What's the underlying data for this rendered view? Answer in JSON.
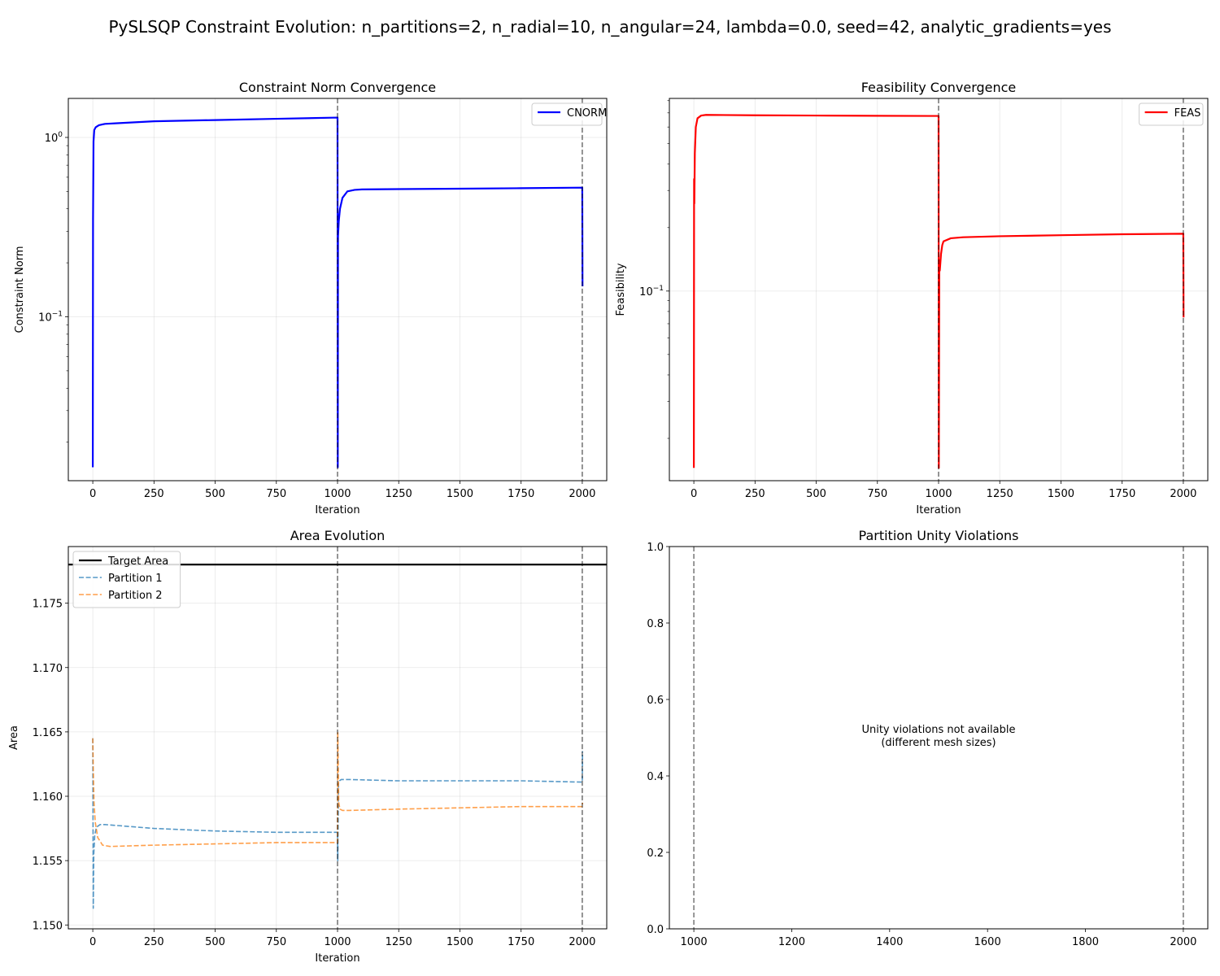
{
  "figure": {
    "title": "PySLSQP Constraint Evolution: n_partitions=2, n_radial=10, n_angular=24, lambda=0.0, seed=42, analytic_gradients=yes"
  },
  "chart_data": [
    {
      "id": "cnorm",
      "type": "line",
      "title": "Constraint Norm Convergence",
      "xlabel": "Iteration",
      "ylabel": "Constraint Norm",
      "xlim": [
        -100,
        2100
      ],
      "ylim": [
        0.0122,
        1.65
      ],
      "yscale": "log",
      "xticks": [
        0,
        250,
        500,
        750,
        1000,
        1250,
        1500,
        1750,
        2000
      ],
      "xtick_labels": [
        "0",
        "250",
        "500",
        "750",
        "1000",
        "1250",
        "1500",
        "1750",
        "2000"
      ],
      "yticks": [
        0.1,
        1
      ],
      "ytick_labels": [
        "10^-1",
        "10^0"
      ],
      "grid": true,
      "legend_position": "upper right",
      "vlines": [
        1000,
        2000
      ],
      "series": [
        {
          "name": "CNORM",
          "color": "#0000ff",
          "style": "solid",
          "x": [
            0,
            1,
            3,
            6,
            12,
            25,
            50,
            100,
            250,
            500,
            750,
            999,
            1000,
            1001,
            1002,
            1005,
            1010,
            1020,
            1040,
            1070,
            1100,
            1250,
            1500,
            1750,
            1999,
            2000,
            2001
          ],
          "y": [
            0.0145,
            0.35,
            0.95,
            1.1,
            1.14,
            1.17,
            1.19,
            1.2,
            1.23,
            1.25,
            1.27,
            1.29,
            1.29,
            0.0145,
            0.28,
            0.34,
            0.4,
            0.46,
            0.5,
            0.51,
            0.513,
            0.515,
            0.518,
            0.521,
            0.525,
            0.525,
            0.148
          ]
        }
      ]
    },
    {
      "id": "feas",
      "type": "line",
      "title": "Feasibility Convergence",
      "xlabel": "Iteration",
      "ylabel": "Feasibility",
      "xlim": [
        -100,
        2100
      ],
      "ylim": [
        0.0126,
        0.82
      ],
      "yscale": "log",
      "xticks": [
        0,
        250,
        500,
        750,
        1000,
        1250,
        1500,
        1750,
        2000
      ],
      "xtick_labels": [
        "0",
        "250",
        "500",
        "750",
        "1000",
        "1250",
        "1500",
        "1750",
        "2000"
      ],
      "yticks": [
        0.1
      ],
      "ytick_labels": [
        "10^-1"
      ],
      "grid": true,
      "legend_position": "upper right",
      "vlines": [
        1000,
        2000
      ],
      "series": [
        {
          "name": "FEAS",
          "color": "#ff0000",
          "style": "solid",
          "x": [
            0,
            1,
            2,
            4,
            8,
            15,
            30,
            50,
            250,
            500,
            750,
            999,
            1000,
            1001,
            1003,
            1005,
            1010,
            1015,
            1020,
            1050,
            1100,
            1250,
            1500,
            1750,
            1999,
            2000,
            2001
          ],
          "y": [
            0.0145,
            0.34,
            0.26,
            0.45,
            0.6,
            0.66,
            0.68,
            0.685,
            0.682,
            0.68,
            0.678,
            0.677,
            0.677,
            0.0145,
            0.14,
            0.125,
            0.15,
            0.165,
            0.172,
            0.178,
            0.18,
            0.182,
            0.184,
            0.186,
            0.187,
            0.187,
            0.075
          ]
        }
      ]
    },
    {
      "id": "area",
      "type": "line",
      "title": "Area Evolution",
      "xlabel": "Iteration",
      "ylabel": "Area",
      "xlim": [
        -100,
        2100
      ],
      "ylim": [
        1.1497,
        1.1794
      ],
      "yscale": "linear",
      "xticks": [
        0,
        250,
        500,
        750,
        1000,
        1250,
        1500,
        1750,
        2000
      ],
      "xtick_labels": [
        "0",
        "250",
        "500",
        "750",
        "1000",
        "1250",
        "1500",
        "1750",
        "2000"
      ],
      "yticks": [
        1.15,
        1.155,
        1.16,
        1.165,
        1.17,
        1.175
      ],
      "ytick_labels": [
        "1.150",
        "1.155",
        "1.160",
        "1.165",
        "1.170",
        "1.175"
      ],
      "grid": true,
      "legend_position": "upper left",
      "vlines": [
        1000,
        2000
      ],
      "series": [
        {
          "name": "Target Area",
          "color": "#000000",
          "style": "solid",
          "x": [
            -100,
            2100
          ],
          "y": [
            1.178,
            1.178
          ]
        },
        {
          "name": "Partition 1",
          "color": "#1f77b4",
          "style": "dashed",
          "x": [
            0,
            2,
            4,
            8,
            15,
            30,
            50,
            250,
            500,
            750,
            999,
            1000,
            1001,
            1004,
            1008,
            1015,
            1050,
            1250,
            1500,
            1750,
            1999,
            2000,
            2001
          ],
          "y": [
            1.1645,
            1.1513,
            1.1555,
            1.157,
            1.1576,
            1.1578,
            1.1578,
            1.1575,
            1.1573,
            1.1572,
            1.1572,
            1.1572,
            1.155,
            1.161,
            1.1612,
            1.1613,
            1.1613,
            1.1612,
            1.1612,
            1.1612,
            1.1611,
            1.1611,
            1.1635
          ]
        },
        {
          "name": "Partition 2",
          "color": "#ff7f0e",
          "style": "dashed",
          "x": [
            0,
            2,
            5,
            10,
            20,
            40,
            70,
            250,
            500,
            750,
            999,
            1000,
            1001,
            1005,
            1010,
            1020,
            1050,
            1250,
            1500,
            1750,
            1999,
            2000,
            2001
          ],
          "y": [
            1.1645,
            1.162,
            1.1595,
            1.158,
            1.1568,
            1.1562,
            1.1561,
            1.1562,
            1.1563,
            1.1564,
            1.1564,
            1.1564,
            1.165,
            1.1595,
            1.159,
            1.1589,
            1.1589,
            1.159,
            1.1591,
            1.1592,
            1.1592,
            1.1592,
            1.1595
          ]
        }
      ]
    },
    {
      "id": "unity",
      "type": "line",
      "title": "Partition Unity Violations",
      "xlabel": "",
      "ylabel": "",
      "xlim": [
        950,
        2050
      ],
      "ylim": [
        0,
        1
      ],
      "yscale": "linear",
      "xticks": [
        1000,
        1200,
        1400,
        1600,
        1800,
        2000
      ],
      "xtick_labels": [
        "1000",
        "1200",
        "1400",
        "1600",
        "1800",
        "2000"
      ],
      "yticks": [
        0,
        0.2,
        0.4,
        0.6,
        0.8,
        1
      ],
      "ytick_labels": [
        "0.0",
        "0.2",
        "0.4",
        "0.6",
        "0.8",
        "1.0"
      ],
      "grid": false,
      "legend_position": "",
      "vlines": [
        1000,
        2000
      ],
      "annotation": "Unity violations not available\n(different mesh sizes)",
      "annotation_lines": [
        "Unity violations not available",
        "(different mesh sizes)"
      ],
      "series": []
    }
  ]
}
